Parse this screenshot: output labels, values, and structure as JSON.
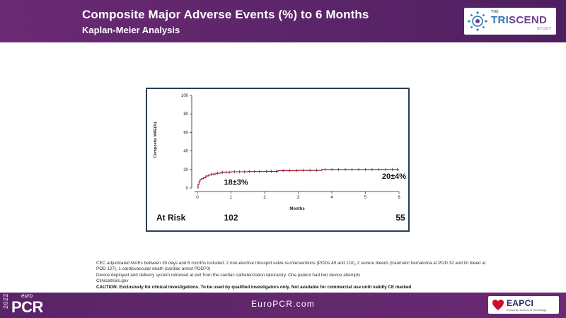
{
  "header": {
    "title": "Composite Major Adverse Events (%) to 6 Months",
    "subtitle": "Kaplan-Meier Analysis",
    "logo_the": "THE",
    "logo_tri": "TRI",
    "logo_scend": "SCEND",
    "logo_study": "STUDY"
  },
  "chart_data": {
    "type": "line",
    "title": "",
    "xlabel": "Months",
    "ylabel": "Composite MAE(%)",
    "xlim": [
      0,
      6
    ],
    "ylim": [
      0,
      100
    ],
    "x_ticks": [
      "0",
      "1",
      "2",
      "3",
      "4",
      "5",
      "6"
    ],
    "y_ticks": [
      "0",
      "20",
      "40",
      "60",
      "80",
      "100"
    ],
    "series": [
      {
        "name": "Composite MAE",
        "color": "#a3162c",
        "x": [
          0,
          0.02,
          0.05,
          0.08,
          0.12,
          0.18,
          0.25,
          0.33,
          0.42,
          0.55,
          0.7,
          1.0,
          1.5,
          2.0,
          2.4,
          3.0,
          3.7,
          4.5,
          5.2,
          6.0
        ],
        "y": [
          0,
          4,
          7,
          9,
          10,
          11,
          13,
          14,
          15,
          16,
          17,
          17.5,
          17.8,
          18,
          18.7,
          19,
          20,
          20,
          20,
          20
        ]
      }
    ],
    "censor_marks_x": [
      0.42,
      0.5,
      0.6,
      0.75,
      0.85,
      0.95,
      1.1,
      1.25,
      1.4,
      1.55,
      1.7,
      1.85,
      2.05,
      2.2,
      2.35,
      2.55,
      2.75,
      2.95,
      3.15,
      3.35,
      3.55,
      3.8,
      4.0,
      4.2,
      4.4,
      4.6,
      4.8,
      5.0,
      5.2,
      5.4,
      5.6,
      5.8,
      5.95
    ],
    "annotations": [
      {
        "text": "18±3%",
        "x": 1.0,
        "y": 18
      },
      {
        "text": "20±4%",
        "x": 6.0,
        "y": 20
      }
    ],
    "at_risk": {
      "label": "At Risk",
      "values": [
        {
          "x": 1.0,
          "n": "102"
        },
        {
          "x": 6.0,
          "n": "55"
        }
      ]
    }
  },
  "footnotes": {
    "line1": "CEC adjudicated MAEs between 30 days and 6 months included: 2 non-elective tricuspid valve re-interventions (PODs 49 and 110), 2 severe bleeds (traumatic hematoma at POD 32 and GI bleed at POD 127), 1 cardiovascular death (cardiac arrest POD70)",
    "line2": "Device deployed and delivery system retrieved at exit from the cardiac catheterization laboratory. One patient had two device attempts",
    "line3": "Clinicaltrials.gov",
    "caution": "CAUTION: Exclusively for clinical investigations. To be used by qualified investigators only. Not available for commercial use until validly CE marked"
  },
  "footer": {
    "year": "2022",
    "euro": "euro",
    "pcr": "PCR",
    "url": "EuroPCR.com",
    "eapci": "EAPCI",
    "eapci_sub": "European Society of Cardiology"
  },
  "colors": {
    "purple": "#5a2468",
    "curve": "#a3162c",
    "frame": "#2b3d55"
  }
}
